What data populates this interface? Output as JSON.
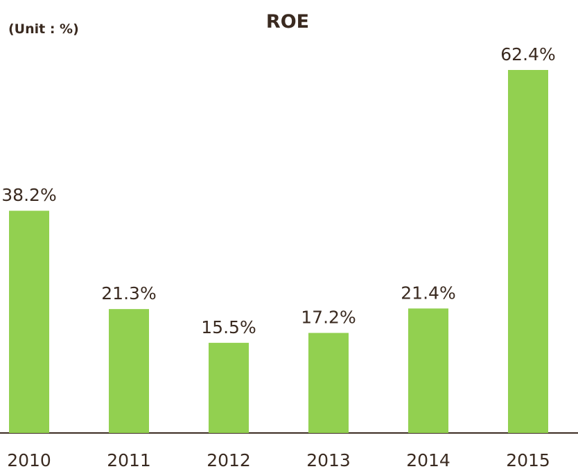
{
  "chart_data": {
    "type": "bar",
    "title": "ROE",
    "unit_label": "(Unit : %)",
    "categories": [
      "2010",
      "2011",
      "2012",
      "2013",
      "2014",
      "2015"
    ],
    "values": [
      38.2,
      21.3,
      15.5,
      17.2,
      21.4,
      62.4
    ],
    "value_labels": [
      "38.2%",
      "21.3%",
      "15.5%",
      "17.2%",
      "21.4%",
      "62.4%"
    ],
    "color": "#92d050"
  }
}
